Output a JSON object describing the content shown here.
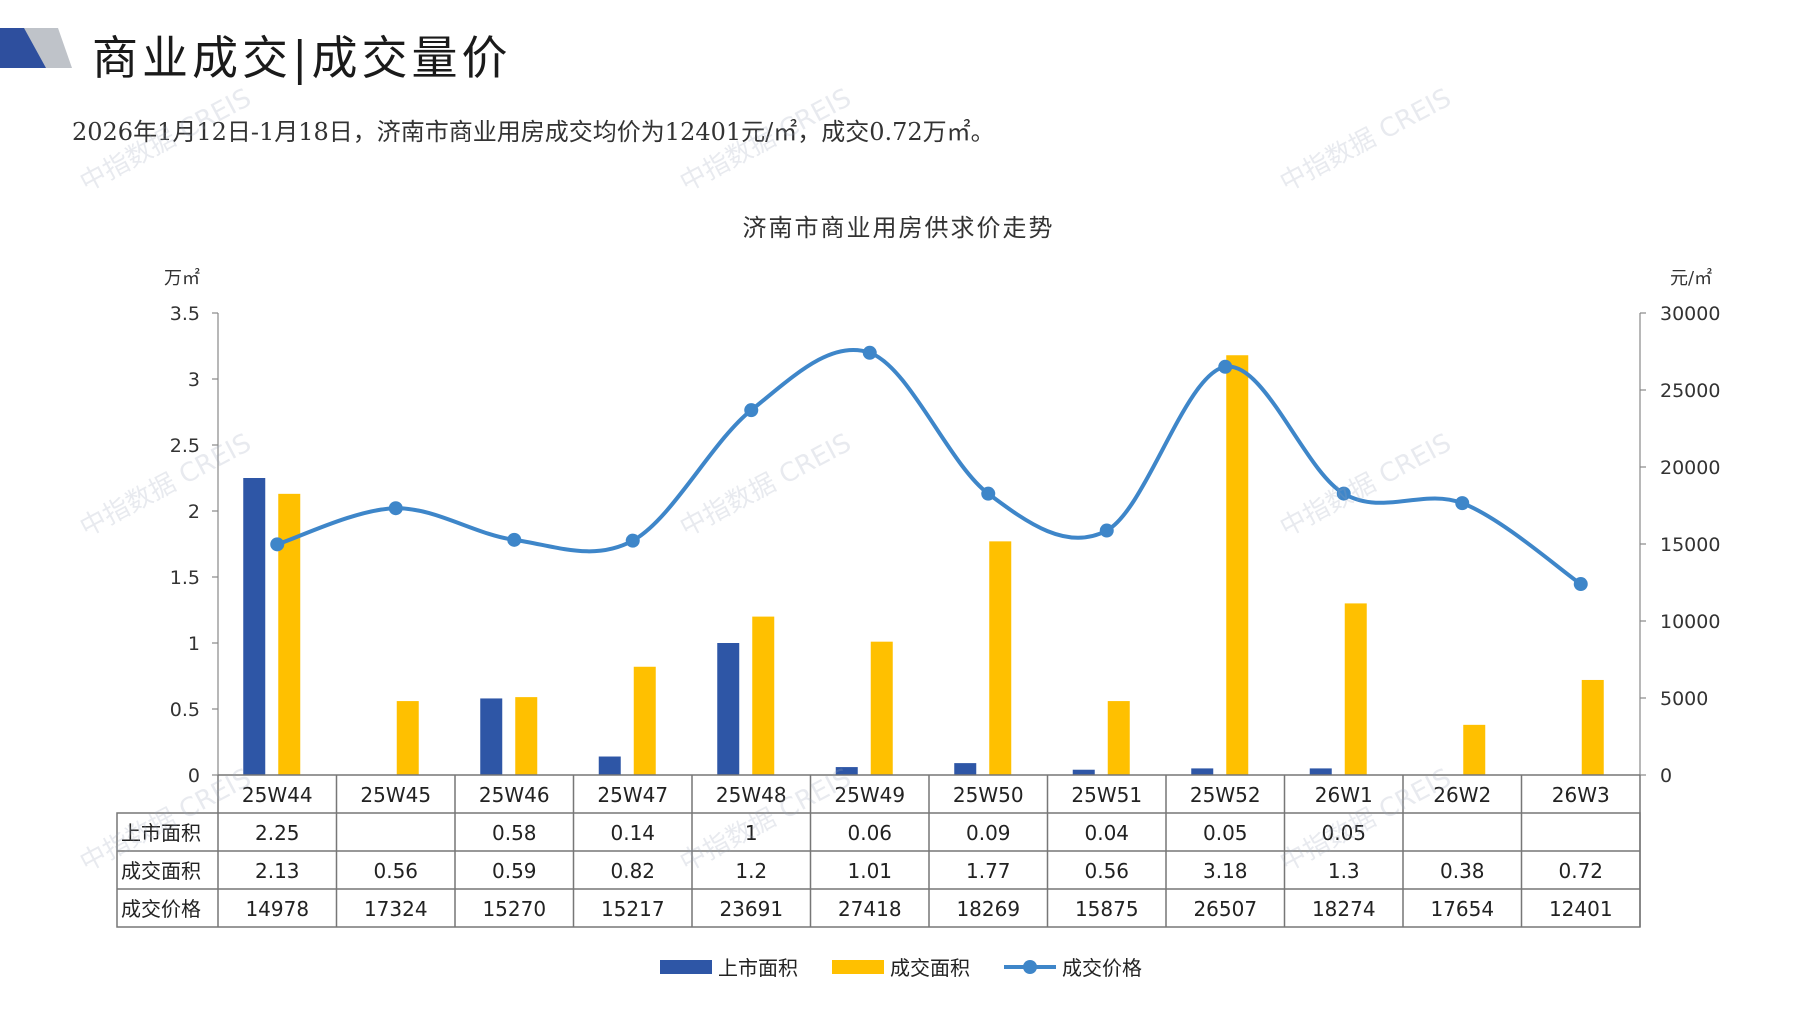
{
  "header": {
    "title": "商业成交|成交量价"
  },
  "summary": "2026年1月12日-1月18日，济南市商业用房成交均价为12401元/㎡，成交0.72万㎡。",
  "colors": {
    "listed": "#2E56A6",
    "deal_area": "#FFC000",
    "price": "#3E86C9",
    "logo_dark": "#2E4F9E",
    "logo_grey": "#BFC3C9"
  },
  "watermark": "中指数据 CREIS",
  "chart_data": {
    "type": "bar",
    "title": "济南市商业用房供求价走势",
    "ylabel_left": "万㎡",
    "ylabel_right": "元/㎡",
    "ylim_left": [
      0,
      3.5
    ],
    "yticks_left": [
      "3.5",
      "3",
      "2.5",
      "2",
      "1.5",
      "1",
      "0.5",
      "0"
    ],
    "ylim_right": [
      0,
      30000
    ],
    "yticks_right": [
      "30000",
      "25000",
      "20000",
      "15000",
      "10000",
      "5000",
      "0"
    ],
    "legend_position": "bottom",
    "categories": [
      "25W44",
      "25W45",
      "25W46",
      "25W47",
      "25W48",
      "25W49",
      "25W50",
      "25W51",
      "25W52",
      "26W1",
      "26W2",
      "26W3"
    ],
    "series": [
      {
        "name": "上市面积",
        "type": "bar",
        "axis": "left",
        "values": [
          2.25,
          null,
          0.58,
          0.14,
          1,
          0.06,
          0.09,
          0.04,
          0.05,
          0.05,
          null,
          null
        ],
        "labels": [
          "2.25",
          "",
          "0.58",
          "0.14",
          "1",
          "0.06",
          "0.09",
          "0.04",
          "0.05",
          "0.05",
          "",
          ""
        ]
      },
      {
        "name": "成交面积",
        "type": "bar",
        "axis": "left",
        "values": [
          2.13,
          0.56,
          0.59,
          0.82,
          1.2,
          1.01,
          1.77,
          0.56,
          3.18,
          1.3,
          0.38,
          0.72
        ],
        "labels": [
          "2.13",
          "0.56",
          "0.59",
          "0.82",
          "1.2",
          "1.01",
          "1.77",
          "0.56",
          "3.18",
          "1.3",
          "0.38",
          "0.72"
        ]
      },
      {
        "name": "成交价格",
        "type": "line",
        "axis": "right",
        "values": [
          14978,
          17324,
          15270,
          15217,
          23691,
          27418,
          18269,
          15875,
          26507,
          18274,
          17654,
          12401
        ],
        "labels": [
          "14978",
          "17324",
          "15270",
          "15217",
          "23691",
          "27418",
          "18269",
          "15875",
          "26507",
          "18274",
          "17654",
          "12401"
        ]
      }
    ]
  }
}
